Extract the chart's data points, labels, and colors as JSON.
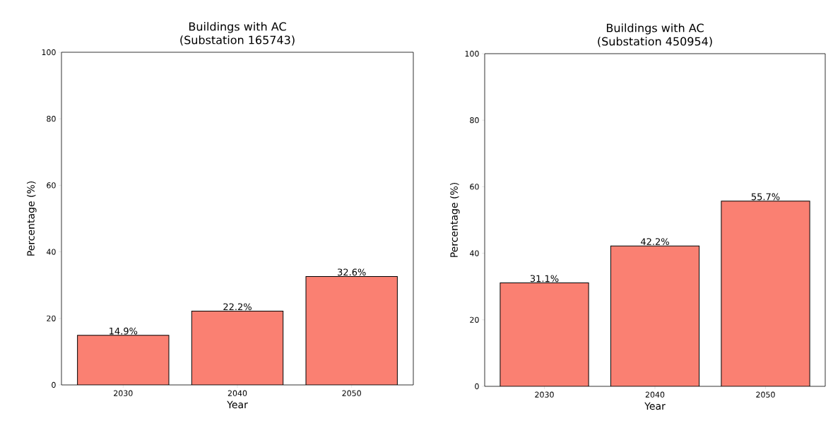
{
  "chart_data": [
    {
      "type": "bar",
      "title": "Buildings with AC",
      "subtitle": "(Substation 165743)",
      "xlabel": "Year",
      "ylabel": "Percentage (%)",
      "categories": [
        "2030",
        "2040",
        "2050"
      ],
      "values": [
        14.9,
        22.2,
        32.6
      ],
      "value_labels": [
        "14.9%",
        "22.2%",
        "32.6%"
      ],
      "color": "#fa8072",
      "ylim": [
        0,
        100
      ],
      "yticks": [
        0,
        20,
        40,
        60,
        80,
        100
      ]
    },
    {
      "type": "bar",
      "title": "Buildings with AC",
      "subtitle": "(Substation 450954)",
      "xlabel": "Year",
      "ylabel": "Percentage (%)",
      "categories": [
        "2030",
        "2040",
        "2050"
      ],
      "values": [
        31.1,
        42.2,
        55.7
      ],
      "value_labels": [
        "31.1%",
        "42.2%",
        "55.7%"
      ],
      "color": "#fa8072",
      "ylim": [
        0,
        100
      ],
      "yticks": [
        0,
        20,
        40,
        60,
        80,
        100
      ]
    }
  ]
}
